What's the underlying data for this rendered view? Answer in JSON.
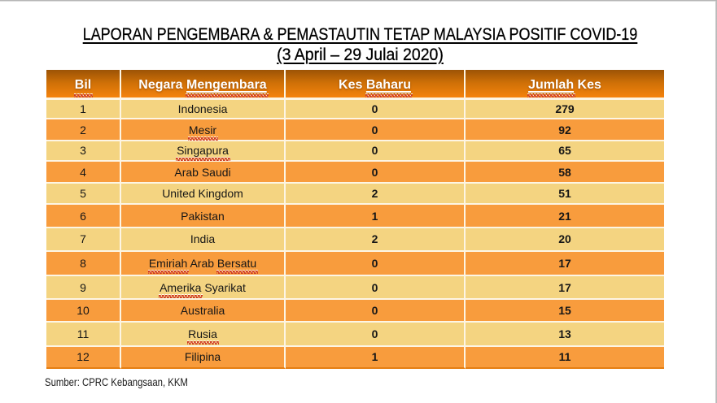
{
  "title": {
    "line1": "LAPORAN PENGEMBARA & PEMASTAUTIN TETAP MALAYSIA POSITIF COVID-19",
    "line2": "(3 April – 29 Julai 2020)"
  },
  "table": {
    "headers": [
      {
        "label": "Bil",
        "squiggle": [
          "Bil"
        ],
        "white_underline": []
      },
      {
        "label": "Negara Mengembara",
        "squiggle": [
          "Mengembara"
        ],
        "white_underline": [
          "Mengembara"
        ]
      },
      {
        "label": "Kes Baharu",
        "squiggle": [
          "Baharu"
        ],
        "white_underline": [
          "Baharu"
        ]
      },
      {
        "label": "Jumlah Kes",
        "squiggle": [
          "Jumlah"
        ],
        "white_underline": [
          "Jumlah"
        ]
      }
    ],
    "rows": [
      {
        "bil": "1",
        "negara": "Indonesia",
        "squiggle": [],
        "kes_baharu": "0",
        "jumlah_kes": "279"
      },
      {
        "bil": "2",
        "negara": "Mesir",
        "squiggle": [
          "Mesir"
        ],
        "kes_baharu": "0",
        "jumlah_kes": "92"
      },
      {
        "bil": "3",
        "negara": "Singapura",
        "squiggle": [
          "Singapura"
        ],
        "kes_baharu": "0",
        "jumlah_kes": "65"
      },
      {
        "bil": "4",
        "negara": "Arab Saudi",
        "squiggle": [],
        "kes_baharu": "0",
        "jumlah_kes": "58"
      },
      {
        "bil": "5",
        "negara": "United Kingdom",
        "squiggle": [],
        "kes_baharu": "2",
        "jumlah_kes": "51"
      },
      {
        "bil": "6",
        "negara": "Pakistan",
        "squiggle": [],
        "kes_baharu": "1",
        "jumlah_kes": "21"
      },
      {
        "bil": "7",
        "negara": "India",
        "squiggle": [],
        "kes_baharu": "2",
        "jumlah_kes": "20"
      },
      {
        "bil": "8",
        "negara": "Emiriah Arab Bersatu",
        "squiggle": [
          "Emiriah",
          "Bersatu"
        ],
        "kes_baharu": "0",
        "jumlah_kes": "17"
      },
      {
        "bil": "9",
        "negara": "Amerika Syarikat",
        "squiggle": [
          "Amerika"
        ],
        "kes_baharu": "0",
        "jumlah_kes": "17"
      },
      {
        "bil": "10",
        "negara": "Australia",
        "squiggle": [],
        "kes_baharu": "0",
        "jumlah_kes": "15"
      },
      {
        "bil": "11",
        "negara": "Rusia",
        "squiggle": [
          "Rusia"
        ],
        "kes_baharu": "0",
        "jumlah_kes": "13"
      },
      {
        "bil": "12",
        "negara": "Filipina",
        "squiggle": [],
        "kes_baharu": "1",
        "jumlah_kes": "11"
      }
    ]
  },
  "footer": {
    "source": "Sumber: CPRC Kebangsaan, KKM"
  },
  "colors": {
    "row-light": "#f4d481",
    "row-orange": "#f89c3d",
    "header-top": "#9c5306",
    "header-mid": "#cd6f07",
    "header-bottom": "#f5830c",
    "divider": "#fdf5e4",
    "table-bottom-border": "#e57e12",
    "squiggle": "#cf3a1e"
  }
}
